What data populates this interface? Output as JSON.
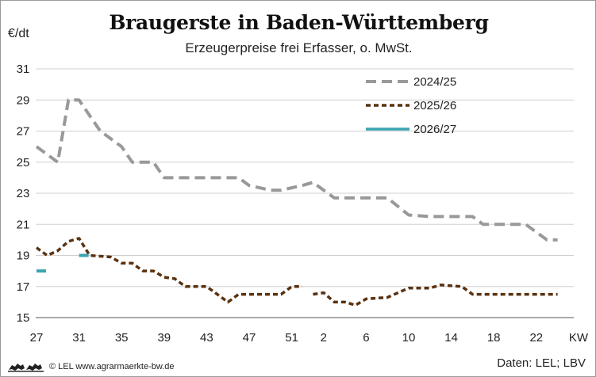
{
  "title": "Braugerste in Baden-Württemberg",
  "subtitle": "Erzeugerpreise frei Erfasser, o. MwSt.",
  "footer": {
    "credit": "© LEL www.agrarmaerkte-bw.de",
    "source": "Daten: LEL; LBV",
    "logo_icon": "baden-wuerttemberg-lions-logo"
  },
  "chart_data": {
    "type": "line",
    "ylabel": "€/dt",
    "xlabel": "KW",
    "ylim": [
      15,
      31
    ],
    "yticks": [
      15,
      17,
      19,
      21,
      23,
      25,
      27,
      29,
      31
    ],
    "xticks": [
      "27",
      "31",
      "35",
      "39",
      "43",
      "47",
      "51",
      "2",
      "6",
      "10",
      "14",
      "18",
      "22"
    ],
    "legend_position": "top-right",
    "series": [
      {
        "name": "2024/25",
        "color": "#999999",
        "style": "dashed",
        "points": [
          [
            "27",
            26.0
          ],
          [
            "29",
            25.0
          ],
          [
            "30",
            29.0
          ],
          [
            "31",
            29.0
          ],
          [
            "33",
            27.0
          ],
          [
            "35",
            26.0
          ],
          [
            "36",
            25.0
          ],
          [
            "38",
            25.0
          ],
          [
            "39",
            24.0
          ],
          [
            "46",
            24.0
          ],
          [
            "47",
            23.5
          ],
          [
            "49",
            23.2
          ],
          [
            "50",
            23.2
          ],
          [
            "52",
            23.5
          ],
          [
            "1",
            23.7
          ],
          [
            "3",
            22.7
          ],
          [
            "8",
            22.7
          ],
          [
            "10",
            21.6
          ],
          [
            "12",
            21.5
          ],
          [
            "16",
            21.5
          ],
          [
            "17",
            21.0
          ],
          [
            "21",
            21.0
          ],
          [
            "23",
            20.0
          ],
          [
            "24",
            20.0
          ]
        ]
      },
      {
        "name": "2025/26",
        "color": "#5a3210",
        "style": "dotted",
        "segments": [
          [
            [
              "27",
              19.5
            ],
            [
              "28",
              19.0
            ],
            [
              "29",
              19.3
            ],
            [
              "30",
              19.9
            ],
            [
              "31",
              20.1
            ],
            [
              "32",
              19.0
            ],
            [
              "34",
              18.9
            ],
            [
              "35",
              18.5
            ],
            [
              "36",
              18.5
            ],
            [
              "37",
              18.0
            ],
            [
              "38",
              18.0
            ],
            [
              "39",
              17.6
            ],
            [
              "40",
              17.5
            ],
            [
              "41",
              17.0
            ],
            [
              "43",
              17.0
            ],
            [
              "44",
              16.5
            ],
            [
              "45",
              16.0
            ],
            [
              "46",
              16.5
            ],
            [
              "50",
              16.5
            ],
            [
              "51",
              17.0
            ],
            [
              "52",
              17.0
            ]
          ],
          [
            [
              "1",
              16.5
            ],
            [
              "2",
              16.6
            ],
            [
              "3",
              16.0
            ],
            [
              "4",
              16.0
            ],
            [
              "5",
              15.8
            ],
            [
              "6",
              16.2
            ],
            [
              "8",
              16.3
            ],
            [
              "9",
              16.6
            ],
            [
              "10",
              16.9
            ],
            [
              "12",
              16.9
            ],
            [
              "13",
              17.1
            ],
            [
              "15",
              17.0
            ],
            [
              "16",
              16.5
            ],
            [
              "24",
              16.5
            ]
          ]
        ]
      },
      {
        "name": "2026/27",
        "color": "#3aa4b0",
        "style": "solid",
        "points": [
          [
            "27",
            18.0
          ],
          [
            "31",
            19.0
          ]
        ]
      }
    ]
  }
}
